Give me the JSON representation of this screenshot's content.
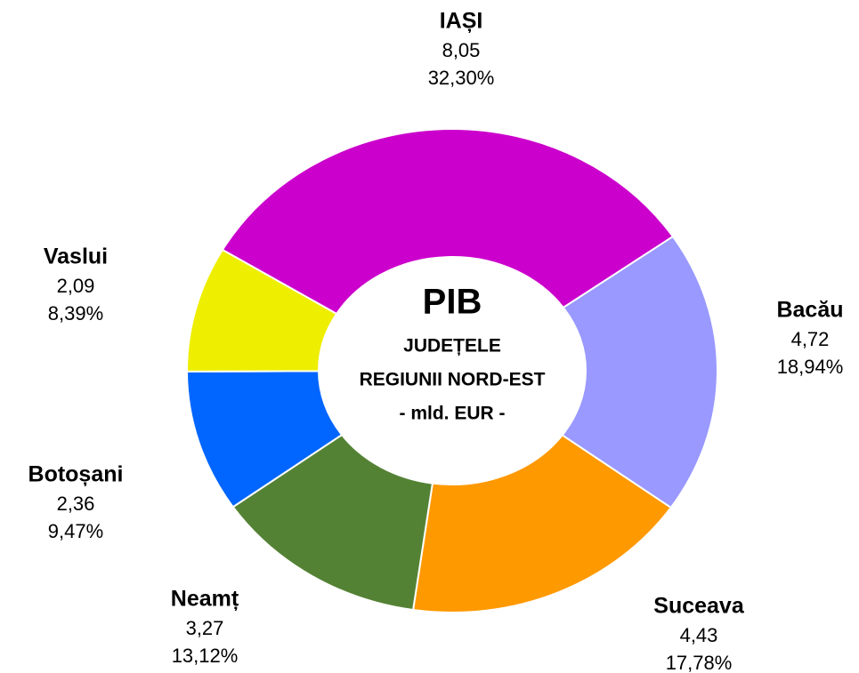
{
  "chart_data": {
    "type": "donut",
    "title": "PIB",
    "subtitle": [
      "JUDEȚELE",
      "REGIUNII NORD-EST",
      "- mld. EUR -"
    ],
    "categories": [
      "IAȘI",
      "Bacău",
      "Suceava",
      "Neamț",
      "Botoșani",
      "Vaslui"
    ],
    "values": [
      8.05,
      4.72,
      4.43,
      3.27,
      2.36,
      2.09
    ],
    "value_labels": [
      "8,05",
      "4,72",
      "4,43",
      "3,27",
      "2,36",
      "2,09"
    ],
    "percentages": [
      32.3,
      18.94,
      17.78,
      13.12,
      9.47,
      8.39
    ],
    "percentage_labels": [
      "32,30%",
      "18,94%",
      "17,78%",
      "13,12%",
      "9,47%",
      "8,39%"
    ],
    "colors": [
      "#cc00cc",
      "#9999ff",
      "#ff9900",
      "#548235",
      "#0066ff",
      "#eeee00"
    ]
  }
}
